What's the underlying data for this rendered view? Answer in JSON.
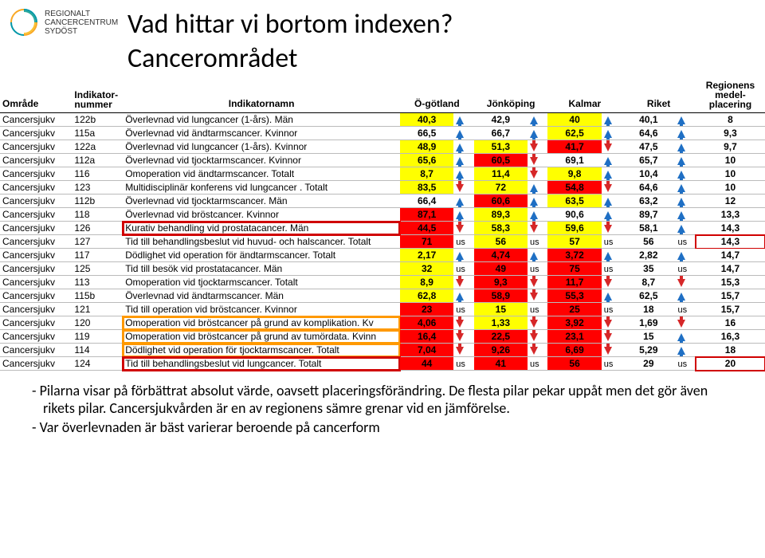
{
  "logo": {
    "color_teal": "#0097a7",
    "color_orange": "#f9a825",
    "line1": "REGIONALT",
    "line2": "CANCERCENTRUM",
    "line3": "SYDÖST"
  },
  "title": "Vad hittar vi bortom indexen?",
  "subtitle": "Cancerområdet",
  "columns": {
    "area": "Område",
    "indnum": "Indikator-nummer",
    "indname": "Indikatornamn",
    "c1": "Ö-götland",
    "c2": "Jönköping",
    "c3": "Kalmar",
    "c4": "Riket",
    "rank": "Regionens medel-placering"
  },
  "rows": [
    {
      "area": "Cancersjukv",
      "num": "122b",
      "name": "Överlevnad vid lungcancer (1-års). Män",
      "v": [
        {
          "val": "40,3",
          "bg": "y",
          "a": "up"
        },
        {
          "val": "42,9",
          "bg": "w",
          "a": "up"
        },
        {
          "val": "40",
          "bg": "y",
          "a": "up"
        },
        {
          "val": "40,1",
          "bg": "w",
          "a": "up"
        }
      ],
      "rank": "8"
    },
    {
      "area": "Cancersjukv",
      "num": "115a",
      "name": "Överlevnad vid ändtarmscancer. Kvinnor",
      "v": [
        {
          "val": "66,5",
          "bg": "w",
          "a": "up"
        },
        {
          "val": "66,7",
          "bg": "w",
          "a": "up"
        },
        {
          "val": "62,5",
          "bg": "y",
          "a": "up"
        },
        {
          "val": "64,6",
          "bg": "w",
          "a": "up"
        }
      ],
      "rank": "9,3"
    },
    {
      "area": "Cancersjukv",
      "num": "122a",
      "name": "Överlevnad vid lungcancer (1-års). Kvinnor",
      "v": [
        {
          "val": "48,9",
          "bg": "y",
          "a": "up"
        },
        {
          "val": "51,3",
          "bg": "y",
          "a": "down"
        },
        {
          "val": "41,7",
          "bg": "r",
          "a": "down"
        },
        {
          "val": "47,5",
          "bg": "w",
          "a": "up"
        }
      ],
      "rank": "9,7"
    },
    {
      "area": "Cancersjukv",
      "num": "112a",
      "name": "Överlevnad vid tjocktarmscancer. Kvinnor",
      "v": [
        {
          "val": "65,6",
          "bg": "y",
          "a": "up"
        },
        {
          "val": "60,5",
          "bg": "r",
          "a": "down"
        },
        {
          "val": "69,1",
          "bg": "w",
          "a": "up"
        },
        {
          "val": "65,7",
          "bg": "w",
          "a": "up"
        }
      ],
      "rank": "10"
    },
    {
      "area": "Cancersjukv",
      "num": "116",
      "name": "Omoperation vid ändtarmscancer. Totalt",
      "v": [
        {
          "val": "8,7",
          "bg": "y",
          "a": "up"
        },
        {
          "val": "11,4",
          "bg": "y",
          "a": "down"
        },
        {
          "val": "9,8",
          "bg": "y",
          "a": "up"
        },
        {
          "val": "10,4",
          "bg": "w",
          "a": "up"
        }
      ],
      "rank": "10"
    },
    {
      "area": "Cancersjukv",
      "num": "123",
      "name": "Multidisciplinär konferens vid lungcancer . Totalt",
      "v": [
        {
          "val": "83,5",
          "bg": "y",
          "a": "down"
        },
        {
          "val": "72",
          "bg": "y",
          "a": "up"
        },
        {
          "val": "54,8",
          "bg": "r",
          "a": "down"
        },
        {
          "val": "64,6",
          "bg": "w",
          "a": "up"
        }
      ],
      "rank": "10"
    },
    {
      "area": "Cancersjukv",
      "num": "112b",
      "name": "Överlevnad vid tjocktarmscancer. Män",
      "v": [
        {
          "val": "66,4",
          "bg": "w",
          "a": "up"
        },
        {
          "val": "60,6",
          "bg": "r",
          "a": "up"
        },
        {
          "val": "63,5",
          "bg": "y",
          "a": "up"
        },
        {
          "val": "63,2",
          "bg": "w",
          "a": "up"
        }
      ],
      "rank": "12"
    },
    {
      "area": "Cancersjukv",
      "num": "118",
      "name": "Överlevnad vid bröstcancer. Kvinnor",
      "v": [
        {
          "val": "87,1",
          "bg": "r",
          "a": "up"
        },
        {
          "val": "89,3",
          "bg": "y",
          "a": "up"
        },
        {
          "val": "90,6",
          "bg": "w",
          "a": "up"
        },
        {
          "val": "89,7",
          "bg": "w",
          "a": "up"
        }
      ],
      "rank": "13,3"
    },
    {
      "area": "Cancersjukv",
      "num": "126",
      "name": "Kurativ behandling vid prostatacancer. Män",
      "v": [
        {
          "val": "44,5",
          "bg": "r",
          "a": "down"
        },
        {
          "val": "58,3",
          "bg": "y",
          "a": "down"
        },
        {
          "val": "59,6",
          "bg": "y",
          "a": "down"
        },
        {
          "val": "58,1",
          "bg": "w",
          "a": "up"
        }
      ],
      "rank": "14,3",
      "box": "red"
    },
    {
      "area": "Cancersjukv",
      "num": "127",
      "name": "Tid till behandlingsbeslut vid huvud- och halscancer. Totalt",
      "v": [
        {
          "val": "71",
          "bg": "r",
          "a": "us"
        },
        {
          "val": "56",
          "bg": "y",
          "a": "us"
        },
        {
          "val": "57",
          "bg": "y",
          "a": "us"
        },
        {
          "val": "56",
          "bg": "w",
          "a": "us"
        }
      ],
      "rank": "14,3",
      "rbox": "red"
    },
    {
      "area": "Cancersjukv",
      "num": "117",
      "name": "Dödlighet vid operation för ändtarmscancer. Totalt",
      "v": [
        {
          "val": "2,17",
          "bg": "y",
          "a": "up"
        },
        {
          "val": "4,74",
          "bg": "r",
          "a": "up"
        },
        {
          "val": "3,72",
          "bg": "r",
          "a": "up"
        },
        {
          "val": "2,82",
          "bg": "w",
          "a": "up"
        }
      ],
      "rank": "14,7"
    },
    {
      "area": "Cancersjukv",
      "num": "125",
      "name": "Tid till besök vid prostatacancer. Män",
      "v": [
        {
          "val": "32",
          "bg": "y",
          "a": "us"
        },
        {
          "val": "49",
          "bg": "r",
          "a": "us"
        },
        {
          "val": "75",
          "bg": "r",
          "a": "us"
        },
        {
          "val": "35",
          "bg": "w",
          "a": "us"
        }
      ],
      "rank": "14,7"
    },
    {
      "area": "Cancersjukv",
      "num": "113",
      "name": "Omoperation vid tjocktarmscancer. Totalt",
      "v": [
        {
          "val": "8,9",
          "bg": "y",
          "a": "down"
        },
        {
          "val": "9,3",
          "bg": "r",
          "a": "down"
        },
        {
          "val": "11,7",
          "bg": "r",
          "a": "down"
        },
        {
          "val": "8,7",
          "bg": "w",
          "a": "down"
        }
      ],
      "rank": "15,3"
    },
    {
      "area": "Cancersjukv",
      "num": "115b",
      "name": "Överlevnad vid ändtarmscancer. Män",
      "v": [
        {
          "val": "62,8",
          "bg": "y",
          "a": "up"
        },
        {
          "val": "58,9",
          "bg": "r",
          "a": "down"
        },
        {
          "val": "55,3",
          "bg": "r",
          "a": "up"
        },
        {
          "val": "62,5",
          "bg": "w",
          "a": "up"
        }
      ],
      "rank": "15,7"
    },
    {
      "area": "Cancersjukv",
      "num": "121",
      "name": "Tid till operation vid bröstcancer. Kvinnor",
      "v": [
        {
          "val": "23",
          "bg": "r",
          "a": "us"
        },
        {
          "val": "15",
          "bg": "y",
          "a": "us"
        },
        {
          "val": "25",
          "bg": "r",
          "a": "us"
        },
        {
          "val": "18",
          "bg": "w",
          "a": "us"
        }
      ],
      "rank": "15,7"
    },
    {
      "area": "Cancersjukv",
      "num": "120",
      "name": "Omoperation vid bröstcancer på grund av komplikation. Kv",
      "v": [
        {
          "val": "4,06",
          "bg": "r",
          "a": "down"
        },
        {
          "val": "1,33",
          "bg": "y",
          "a": "down"
        },
        {
          "val": "3,92",
          "bg": "r",
          "a": "down"
        },
        {
          "val": "1,69",
          "bg": "w",
          "a": "down"
        }
      ],
      "rank": "16",
      "box": "orange"
    },
    {
      "area": "Cancersjukv",
      "num": "119",
      "name": "Omoperation vid bröstcancer på grund av tumördata. Kvinn",
      "v": [
        {
          "val": "16,4",
          "bg": "r",
          "a": "down"
        },
        {
          "val": "22,5",
          "bg": "r",
          "a": "down"
        },
        {
          "val": "23,1",
          "bg": "r",
          "a": "down"
        },
        {
          "val": "15",
          "bg": "w",
          "a": "up"
        }
      ],
      "rank": "16,3",
      "box": "orange"
    },
    {
      "area": "Cancersjukv",
      "num": "114",
      "name": "Dödlighet vid operation för tjocktarmscancer. Totalt",
      "v": [
        {
          "val": "7,04",
          "bg": "r",
          "a": "down"
        },
        {
          "val": "9,26",
          "bg": "r",
          "a": "down"
        },
        {
          "val": "6,69",
          "bg": "r",
          "a": "down"
        },
        {
          "val": "5,29",
          "bg": "w",
          "a": "up"
        }
      ],
      "rank": "18",
      "box": "orange"
    },
    {
      "area": "Cancersjukv",
      "num": "124",
      "name": "Tid till behandlingsbeslut vid lungcancer. Totalt",
      "v": [
        {
          "val": "44",
          "bg": "r",
          "a": "us"
        },
        {
          "val": "41",
          "bg": "r",
          "a": "us"
        },
        {
          "val": "56",
          "bg": "r",
          "a": "us"
        },
        {
          "val": "29",
          "bg": "w",
          "a": "us"
        }
      ],
      "rank": "20",
      "box": "red",
      "rbox": "red"
    }
  ],
  "bullets": [
    "Pilarna visar på förbättrat absolut värde, oavsett placeringsförändring. De flesta pilar pekar uppåt men det gör även rikets pilar. Cancersjukvården är en av regionens sämre grenar vid en jämförelse.",
    "Var överlevnaden är bäst varierar beroende på cancerform"
  ]
}
